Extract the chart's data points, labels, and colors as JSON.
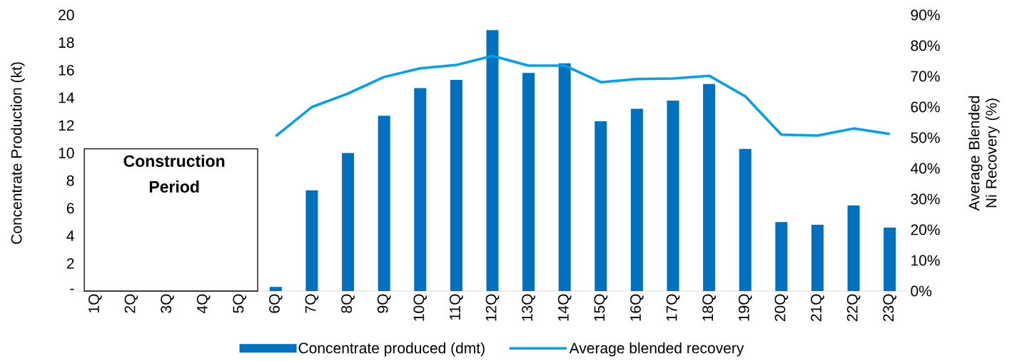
{
  "chart_data": {
    "type": "bar",
    "xlabel": null,
    "ylabel": "Concentrate Production (kt)",
    "y2label": "Average Blended Ni Recovery (%)",
    "categories": [
      "1Q",
      "2Q",
      "3Q",
      "4Q",
      "5Q",
      "6Q",
      "7Q",
      "8Q",
      "9Q",
      "10Q",
      "11Q",
      "12Q",
      "13Q",
      "14Q",
      "15Q",
      "16Q",
      "17Q",
      "18Q",
      "19Q",
      "20Q",
      "21Q",
      "22Q",
      "23Q"
    ],
    "series": [
      {
        "name": "Concentrate produced (dmt)",
        "color": "#0070c0",
        "values": [
          null,
          null,
          null,
          null,
          null,
          0.3,
          7.3,
          10.0,
          12.7,
          14.7,
          15.3,
          18.9,
          15.8,
          16.5,
          12.3,
          13.2,
          13.8,
          15.0,
          10.3,
          5.0,
          4.8,
          6.2,
          4.6
        ]
      },
      {
        "name": "Average blended recovery",
        "type": "line",
        "axis": "y2",
        "color": "#00a0f0",
        "values": [
          null,
          null,
          null,
          null,
          null,
          50.5,
          60,
          64.4,
          69.8,
          72.6,
          73.7,
          76.7,
          73.5,
          73.5,
          68.1,
          69.1,
          69.3,
          70.2,
          63.5,
          51,
          50.7,
          53,
          51.2
        ]
      }
    ],
    "ylim": [
      0,
      20
    ],
    "yticks": [
      {
        "value": 0,
        "label": "-"
      },
      2,
      4,
      6,
      8,
      10,
      12,
      14,
      16,
      18,
      20
    ],
    "y2lim": [
      0,
      90
    ],
    "y2ticks": [
      {
        "value": 0,
        "label": "0%"
      },
      {
        "value": 10,
        "label": "10%"
      },
      {
        "value": 20,
        "label": "20%"
      },
      {
        "value": 30,
        "label": "30%"
      },
      {
        "value": 40,
        "label": "40%"
      },
      {
        "value": 50,
        "label": "50%"
      },
      {
        "value": 60,
        "label": "60%"
      },
      {
        "value": 70,
        "label": "70%"
      },
      {
        "value": 80,
        "label": "80%"
      },
      {
        "value": 90,
        "label": "90%"
      }
    ],
    "annotations": [
      "Construction Period"
    ],
    "legend": "bottom",
    "grid": false,
    "marker": "none",
    "line_style": "solid"
  }
}
